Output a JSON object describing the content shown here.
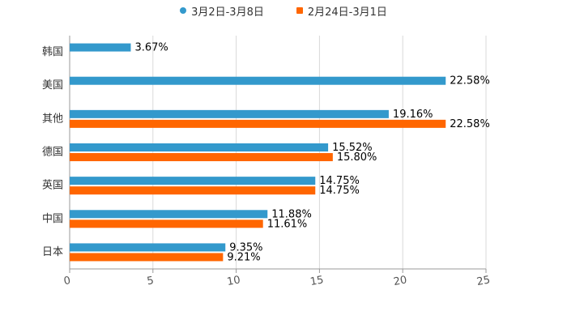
{
  "chart_data": {
    "type": "bar",
    "orientation": "horizontal",
    "title": "",
    "xlabel": "",
    "ylabel": "",
    "xlim": [
      0,
      25
    ],
    "x_ticks": [
      0,
      5,
      10,
      15,
      20,
      25
    ],
    "grid": true,
    "legend_position": "top-center",
    "categories": [
      "韩国",
      "美国",
      "其他",
      "德国",
      "英国",
      "中国",
      "日本"
    ],
    "series": [
      {
        "name": "3月2日-3月8日",
        "color": "#3399cc",
        "marker": "circle",
        "values": [
          3.67,
          22.58,
          19.16,
          15.52,
          14.75,
          11.88,
          9.35
        ],
        "labels": [
          "3.67%",
          "22.58%",
          "19.16%",
          "15.52%",
          "14.75%",
          "11.88%",
          "9.35%"
        ]
      },
      {
        "name": "2月24日-3月1日",
        "color": "#ff6600",
        "marker": "square",
        "values": [
          null,
          null,
          22.58,
          15.8,
          14.75,
          11.61,
          9.21
        ],
        "labels": [
          null,
          null,
          "22.58%",
          "15.80%",
          "14.75%",
          "11.61%",
          "9.21%"
        ]
      }
    ]
  }
}
